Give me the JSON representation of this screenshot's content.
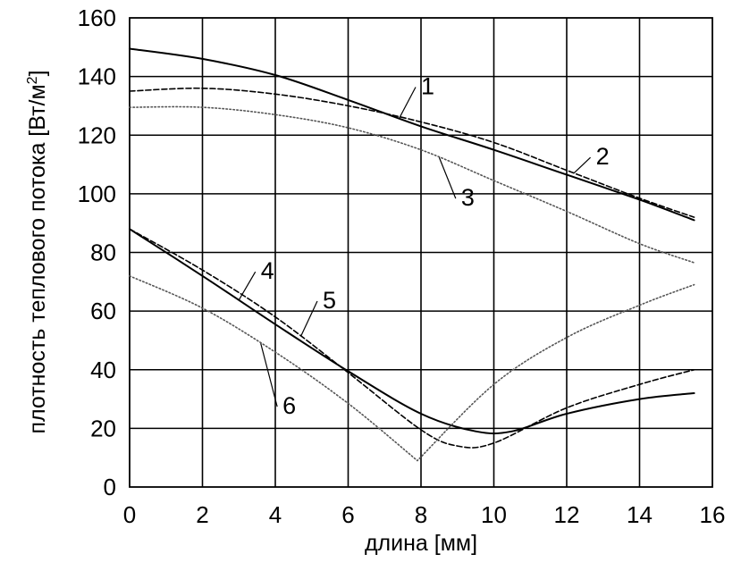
{
  "chart_data": {
    "type": "line",
    "xlabel": "длина  [мм]",
    "ylabel": "плотность теплового потока [Вт/м",
    "ylabel_sup": "2",
    "ylabel_end": "]",
    "xlim": [
      0,
      16
    ],
    "ylim": [
      0,
      160
    ],
    "xticks": [
      0,
      2,
      4,
      6,
      8,
      10,
      12,
      14,
      16
    ],
    "yticks": [
      0,
      20,
      40,
      60,
      80,
      100,
      120,
      140,
      160
    ],
    "grid": true,
    "series": [
      {
        "name": "1",
        "style": "solid",
        "color": "#000000",
        "x": [
          0,
          2,
          4,
          6,
          8,
          10,
          12,
          14,
          15.5
        ],
        "y": [
          149.5,
          146,
          140.5,
          132,
          123,
          115,
          106.5,
          98,
          91
        ]
      },
      {
        "name": "2",
        "style": "dashed",
        "color": "#000000",
        "x": [
          0,
          2,
          4,
          6,
          8,
          10,
          12,
          14,
          15.5
        ],
        "y": [
          135,
          136,
          134,
          130,
          124.5,
          117.5,
          108,
          98.5,
          92
        ]
      },
      {
        "name": "3",
        "style": "dotted",
        "color": "#555555",
        "x": [
          0,
          2,
          4,
          6,
          8,
          10,
          12,
          14,
          15.5
        ],
        "y": [
          129.5,
          129.5,
          127,
          122.5,
          115,
          104.5,
          94,
          83,
          76.5
        ]
      },
      {
        "name": "4",
        "style": "solid",
        "color": "#000000",
        "x": [
          0,
          2,
          4,
          6,
          8,
          9.5,
          10.5,
          12,
          14,
          15.5
        ],
        "y": [
          88,
          72,
          55.5,
          39.5,
          25,
          19,
          19,
          25,
          30,
          32
        ]
      },
      {
        "name": "5",
        "style": "dashed",
        "color": "#000000",
        "x": [
          0,
          2,
          4,
          6,
          8,
          9,
          10,
          12,
          14,
          15.5
        ],
        "y": [
          88,
          74,
          58,
          39,
          19.5,
          14,
          15,
          27,
          35,
          40
        ]
      },
      {
        "name": "6",
        "style": "dotted",
        "color": "#555555",
        "x": [
          0,
          2,
          4,
          6,
          7.9,
          10,
          12,
          14,
          15.5
        ],
        "y": [
          72,
          61,
          46,
          28.5,
          9,
          35,
          51,
          62,
          69
        ]
      }
    ],
    "annotations": [
      {
        "text": "1",
        "x": 8.0,
        "y": 137
      },
      {
        "text": "2",
        "x": 12.8,
        "y": 113
      },
      {
        "text": "3",
        "x": 9.1,
        "y": 99
      },
      {
        "text": "4",
        "x": 3.6,
        "y": 74
      },
      {
        "text": "5",
        "x": 5.3,
        "y": 64
      },
      {
        "text": "6",
        "x": 4.2,
        "y": 28
      }
    ]
  }
}
